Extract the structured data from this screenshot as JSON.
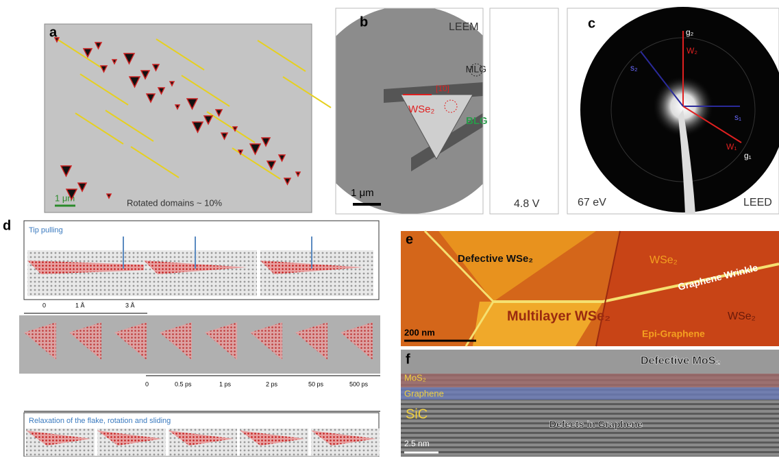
{
  "panels": {
    "a": {
      "label": "a",
      "scale_bar": "1 μm",
      "caption": "Rotated domains ~ 10%"
    },
    "b": {
      "label": "b",
      "mode": "LEEM",
      "mlg": "MLG",
      "direction": "[1̄0]",
      "flake": "WSe₂",
      "blg": "BLG",
      "scale_bar": "1 μm",
      "voltage": "4.8 V"
    },
    "c": {
      "label": "c",
      "g2": "g₂",
      "w2": "W₂",
      "s2": "s₂",
      "s1": "s₁",
      "w1": "W₁",
      "g1": "g₁",
      "energy": "67 eV",
      "mode": "LEED"
    },
    "d": {
      "label": "d",
      "top_title": "Tip pulling",
      "distances": [
        "0",
        "1 Å",
        "3 Å"
      ],
      "times": [
        "0",
        "0.5 ps",
        "1 ps",
        "2 ps",
        "50 ps",
        "500 ps"
      ],
      "bottom_title": "Relaxation of the flake, rotation and sliding"
    },
    "e": {
      "label": "e",
      "defective": "Defective WSe₂",
      "wse2_top": "WSe₂",
      "wrinkle": "Graphene Wrinkle",
      "wse2_right": "WSe₂",
      "multilayer": "Multilayer WSe₂",
      "scale_bar": "200 nm",
      "epi": "Epi-Graphene"
    },
    "f": {
      "label": "f",
      "defective": "Defective MoS₂",
      "mos2": "MoS₂",
      "graphene": "Graphene",
      "sic": "SiC",
      "defects": "Defects in Graphene",
      "scale_bar": "2.5 nm"
    }
  }
}
